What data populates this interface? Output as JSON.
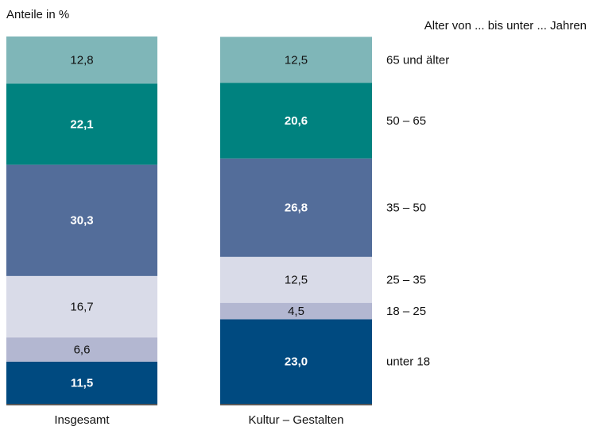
{
  "chart_data": {
    "type": "stacked_bar",
    "y_label": "Anteile in %",
    "legend_title": "Alter von ... bis unter ... Jahren",
    "categories": [
      "Insgesamt",
      "Kultur – Gestalten"
    ],
    "ylim": [
      0,
      100
    ],
    "series": [
      {
        "name": "unter 18",
        "color": "#004a80",
        "values": [
          11.5,
          23.0
        ],
        "value_labels": [
          "11,5",
          "23,0"
        ]
      },
      {
        "name": "18 – 25",
        "color": "#b3b7d1",
        "values": [
          6.6,
          4.5
        ],
        "value_labels": [
          "6,6",
          "4,5"
        ]
      },
      {
        "name": "25 – 35",
        "color": "#d9dbe8",
        "values": [
          16.7,
          12.5
        ],
        "value_labels": [
          "16,7",
          "12,5"
        ]
      },
      {
        "name": "35 – 50",
        "color": "#536d9a",
        "values": [
          30.3,
          26.8
        ],
        "value_labels": [
          "30,3",
          "26,8"
        ]
      },
      {
        "name": "50 – 65",
        "color": "#00827f",
        "values": [
          22.1,
          20.6
        ],
        "value_labels": [
          "22,1",
          "20,6"
        ]
      },
      {
        "name": "65 und älter",
        "color": "#7fb6b8",
        "values": [
          12.8,
          12.5
        ],
        "value_labels": [
          "12,8",
          "12,5"
        ]
      }
    ]
  }
}
